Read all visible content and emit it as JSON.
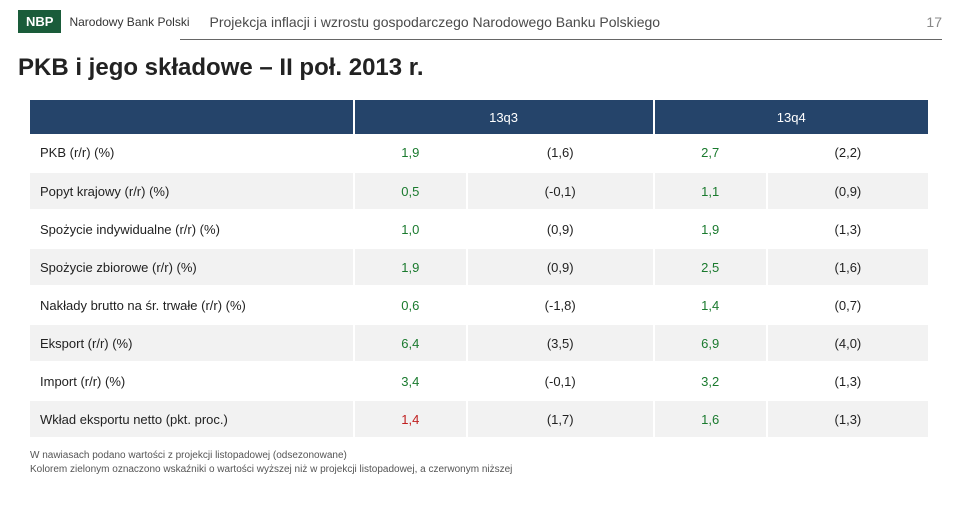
{
  "header": {
    "logo": "NBP",
    "bank_name": "Narodowy Bank Polski",
    "title": "Projekcja inflacji i wzrostu gospodarczego Narodowego Banku Polskiego",
    "page_number": "17"
  },
  "slide_title": "PKB i jego składowe – II poł. 2013 r.",
  "colors": {
    "header_bg": "#25446a",
    "header_text": "#ffffff",
    "row_alt": "#f2f2f2",
    "green": "#1a7a2e",
    "red": "#c02020",
    "black": "#222222",
    "logo_bg": "#1a5c3a"
  },
  "table": {
    "header_blank": "",
    "columns": [
      {
        "span": 2,
        "label": "13q3"
      },
      {
        "span": 2,
        "label": "13q4"
      }
    ],
    "rows": [
      {
        "label": "PKB (r/r) (%)",
        "cells": [
          {
            "text": "1,9",
            "color": "#1a7a2e"
          },
          {
            "text": "(1,6)",
            "color": "#222222"
          },
          {
            "text": "2,7",
            "color": "#1a7a2e"
          },
          {
            "text": "(2,2)",
            "color": "#222222"
          }
        ]
      },
      {
        "label": "Popyt krajowy (r/r) (%)",
        "cells": [
          {
            "text": "0,5",
            "color": "#1a7a2e"
          },
          {
            "text": "(-0,1)",
            "color": "#222222"
          },
          {
            "text": "1,1",
            "color": "#1a7a2e"
          },
          {
            "text": "(0,9)",
            "color": "#222222"
          }
        ]
      },
      {
        "label": "Spożycie indywidualne (r/r) (%)",
        "cells": [
          {
            "text": "1,0",
            "color": "#1a7a2e"
          },
          {
            "text": "(0,9)",
            "color": "#222222"
          },
          {
            "text": "1,9",
            "color": "#1a7a2e"
          },
          {
            "text": "(1,3)",
            "color": "#222222"
          }
        ]
      },
      {
        "label": "Spożycie zbiorowe (r/r) (%)",
        "cells": [
          {
            "text": "1,9",
            "color": "#1a7a2e"
          },
          {
            "text": "(0,9)",
            "color": "#222222"
          },
          {
            "text": "2,5",
            "color": "#1a7a2e"
          },
          {
            "text": "(1,6)",
            "color": "#222222"
          }
        ]
      },
      {
        "label": "Nakłady brutto na śr. trwałe (r/r) (%)",
        "cells": [
          {
            "text": "0,6",
            "color": "#1a7a2e"
          },
          {
            "text": "(-1,8)",
            "color": "#222222"
          },
          {
            "text": "1,4",
            "color": "#1a7a2e"
          },
          {
            "text": "(0,7)",
            "color": "#222222"
          }
        ]
      },
      {
        "label": "Eksport (r/r) (%)",
        "cells": [
          {
            "text": "6,4",
            "color": "#1a7a2e"
          },
          {
            "text": "(3,5)",
            "color": "#222222"
          },
          {
            "text": "6,9",
            "color": "#1a7a2e"
          },
          {
            "text": "(4,0)",
            "color": "#222222"
          }
        ]
      },
      {
        "label": "Import (r/r) (%)",
        "cells": [
          {
            "text": "3,4",
            "color": "#1a7a2e"
          },
          {
            "text": "(-0,1)",
            "color": "#222222"
          },
          {
            "text": "3,2",
            "color": "#1a7a2e"
          },
          {
            "text": "(1,3)",
            "color": "#222222"
          }
        ]
      },
      {
        "label": "Wkład eksportu netto (pkt. proc.)",
        "cells": [
          {
            "text": "1,4",
            "color": "#c02020"
          },
          {
            "text": "(1,7)",
            "color": "#222222"
          },
          {
            "text": "1,6",
            "color": "#1a7a2e"
          },
          {
            "text": "(1,3)",
            "color": "#222222"
          }
        ]
      }
    ]
  },
  "footnotes": {
    "line1": "W nawiasach podano wartości z projekcji listopadowej (odsezonowane)",
    "line2": "Kolorem zielonym oznaczono wskaźniki o wartości wyższej niż w projekcji listopadowej, a czerwonym niższej"
  }
}
